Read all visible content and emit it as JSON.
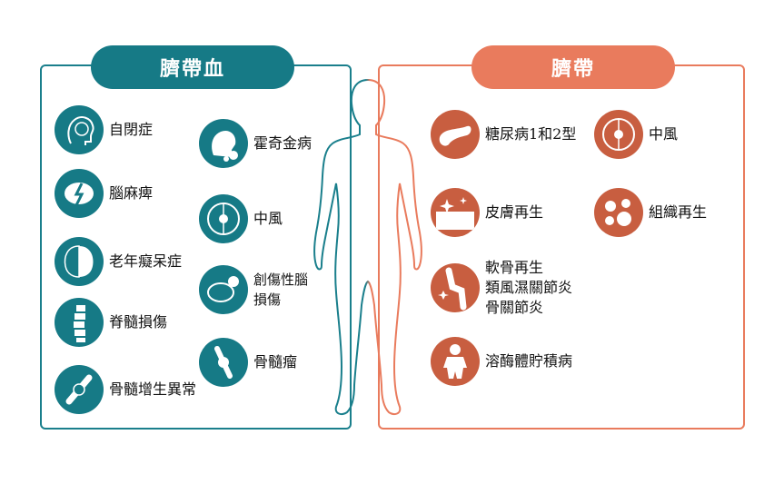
{
  "headers": {
    "cord_blood": "臍帶血",
    "umbilical_cord": "臍帶"
  },
  "cord_blood_items": [
    {
      "label": "自閉症",
      "icon": "head-brain-icon"
    },
    {
      "label": "霍奇金病",
      "icon": "head-lymph-icon"
    },
    {
      "label": "腦麻痺",
      "icon": "brain-lightning-icon"
    },
    {
      "label": "中風",
      "icon": "brain-stroke-icon"
    },
    {
      "label": "老年癡呆症",
      "icon": "brain-half-icon"
    },
    {
      "label": "創傷性腦",
      "label2": "損傷",
      "icon": "brain-injury-icon"
    },
    {
      "label": "脊髓損傷",
      "icon": "spine-icon"
    },
    {
      "label": "骨髓瘤",
      "icon": "bone-tumor-icon"
    },
    {
      "label": "骨髓增生異常",
      "icon": "bone-marrow-icon"
    }
  ],
  "cord_items": [
    {
      "label": "糖尿病1和2型",
      "icon": "pancreas-icon"
    },
    {
      "label": "中風",
      "icon": "brain-stroke-icon"
    },
    {
      "label": "皮膚再生",
      "icon": "skin-icon"
    },
    {
      "label": "組織再生",
      "icon": "cells-icon"
    },
    {
      "label": "軟骨再生",
      "label2": "類風濕關節炎",
      "label3": "骨關節炎",
      "icon": "knee-joint-icon"
    },
    {
      "label": "溶酶體貯積病",
      "icon": "child-body-icon"
    }
  ],
  "colors": {
    "teal": "#167a86",
    "orange": "#e97b5d"
  }
}
